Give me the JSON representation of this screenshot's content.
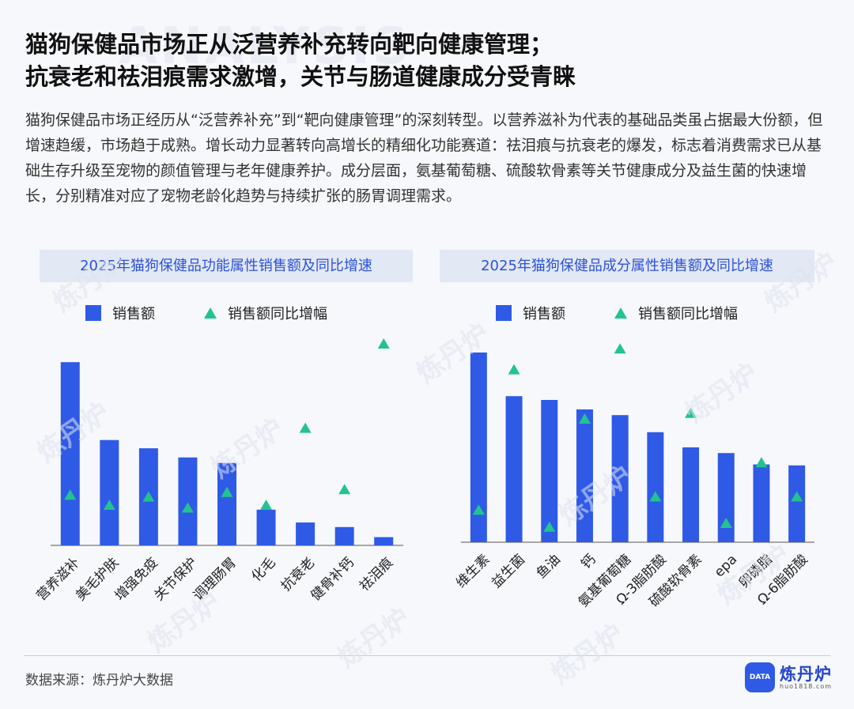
{
  "title_line1": "猫狗保健品市场正从泛营养补充转向靶向健康管理；",
  "title_line2": "抗衰老和祛泪痕需求激增，关节与肠道健康成分受青睐",
  "intro": "猫狗保健品市场正经历从“泛营养补充”到“靶向健康管理”的深刻转型。以营养滋补为代表的基础品类虽占据最大份额，但增速趋缓，市场趋于成熟。增长动力显著转向高增长的精细化功能赛道：祛泪痕与抗衰老的爆发，标志着消费需求已从基础生存升级至宠物的颜值管理与老年健康养护。成分层面，氨基葡萄糖、硫酸软骨素等关节健康成分及益生菌的快速增长，分别精准对应了宠物老龄化趋势与持续扩张的肠胃调理需求。",
  "legend": {
    "bar": "销售额",
    "marker": "销售额同比增幅"
  },
  "watermark": "炼丹炉",
  "footer": {
    "source": "数据来源：炼丹炉大数据",
    "logo_badge": "DATA",
    "logo_name": "炼丹炉",
    "logo_url": "huo1818.com"
  },
  "colors": {
    "bar": "#2f5ae6",
    "marker": "#22c38f",
    "accent": "#2d52d6"
  },
  "chart_data": [
    {
      "type": "bar",
      "title": "2025年猫狗保健品功能属性销售额及同比增速",
      "categories": [
        "营养滋补",
        "美毛护肤",
        "增强免疫",
        "关节保护",
        "调理肠胃",
        "化毛",
        "抗衰老",
        "健骨补钙",
        "祛泪痕"
      ],
      "series": [
        {
          "name": "销售额",
          "kind": "bar",
          "values": [
            100,
            57.5,
            53,
            48,
            45,
            19.5,
            12.5,
            10,
            4.5
          ]
        },
        {
          "name": "销售额同比增幅",
          "kind": "marker",
          "values": [
            27.5,
            22,
            26.5,
            20.5,
            29,
            22,
            64,
            30.5,
            110
          ]
        }
      ],
      "ylim": [
        0,
        110
      ],
      "grid": false,
      "legend_position": "top"
    },
    {
      "type": "bar",
      "title": "2025年猫狗保健品成分属性销售额及同比增速",
      "categories": [
        "维生素",
        "益生菌",
        "鱼油",
        "钙",
        "氨基葡萄糖",
        "Ω-3脂肪酸",
        "硫酸软骨素",
        "epa",
        "卵磷脂",
        "Ω-6脂肪酸"
      ],
      "series": [
        {
          "name": "销售额",
          "kind": "bar",
          "values": [
            100,
            77,
            75,
            70,
            67,
            58,
            50,
            47,
            41,
            40.5
          ]
        },
        {
          "name": "销售额同比增幅",
          "kind": "marker",
          "values": [
            17,
            91,
            8,
            65,
            102,
            24,
            68,
            10,
            42,
            24
          ]
        }
      ],
      "ylim": [
        0,
        110
      ],
      "grid": false,
      "legend_position": "top"
    }
  ]
}
